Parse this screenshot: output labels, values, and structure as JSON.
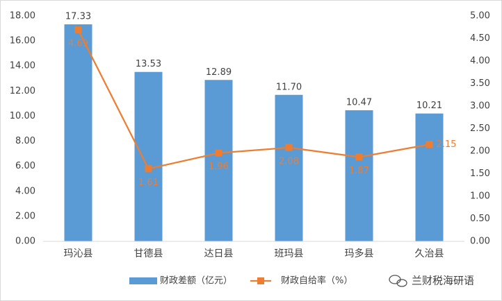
{
  "chart_data": {
    "type": "bar",
    "categories": [
      "玛沁县",
      "甘德县",
      "达日县",
      "班玛县",
      "玛多县",
      "久治县"
    ],
    "series": [
      {
        "name": "财政差额（亿元）",
        "color": "#5b9bd5",
        "values": [
          17.33,
          13.53,
          12.89,
          11.7,
          10.47,
          10.21
        ],
        "value_labels": [
          "17.33",
          "13.53",
          "12.89",
          "11.70",
          "10.47",
          "10.21"
        ]
      },
      {
        "name": "财政自给率（%）",
        "type": "line",
        "axis": "y2",
        "color": "#ed7d31",
        "values": [
          4.69,
          1.61,
          1.96,
          2.08,
          1.87,
          2.15
        ]
      }
    ],
    "ylim": [
      0,
      18
    ],
    "yticks": [
      {
        "value": 0,
        "label": "0.00"
      },
      {
        "value": 2,
        "label": "2.00"
      },
      {
        "value": 4,
        "label": "4.00"
      },
      {
        "value": 6,
        "label": "6.00"
      },
      {
        "value": 8,
        "label": "8.00"
      },
      {
        "value": 10,
        "label": "10.00"
      },
      {
        "value": 12,
        "label": "12.00"
      },
      {
        "value": 14,
        "label": "14.00"
      },
      {
        "value": 16,
        "label": "16.00"
      },
      {
        "value": 18,
        "label": "18.00"
      }
    ],
    "y2lim": [
      0,
      5
    ],
    "y2ticks": [
      {
        "value": 0,
        "label": "0.00"
      },
      {
        "value": 0.5,
        "label": "0.50"
      },
      {
        "value": 1,
        "label": "1.00"
      },
      {
        "value": 1.5,
        "label": "1.50"
      },
      {
        "value": 2,
        "label": "2.00"
      },
      {
        "value": 2.5,
        "label": "2.50"
      },
      {
        "value": 3,
        "label": "3.00"
      },
      {
        "value": 3.5,
        "label": "3.50"
      },
      {
        "value": 4,
        "label": "4.00"
      },
      {
        "value": 4.5,
        "label": "4.50"
      },
      {
        "value": 5,
        "label": "5.00"
      }
    ],
    "grid": false,
    "legend": "bottom",
    "watermark": "兰财税海研语"
  }
}
